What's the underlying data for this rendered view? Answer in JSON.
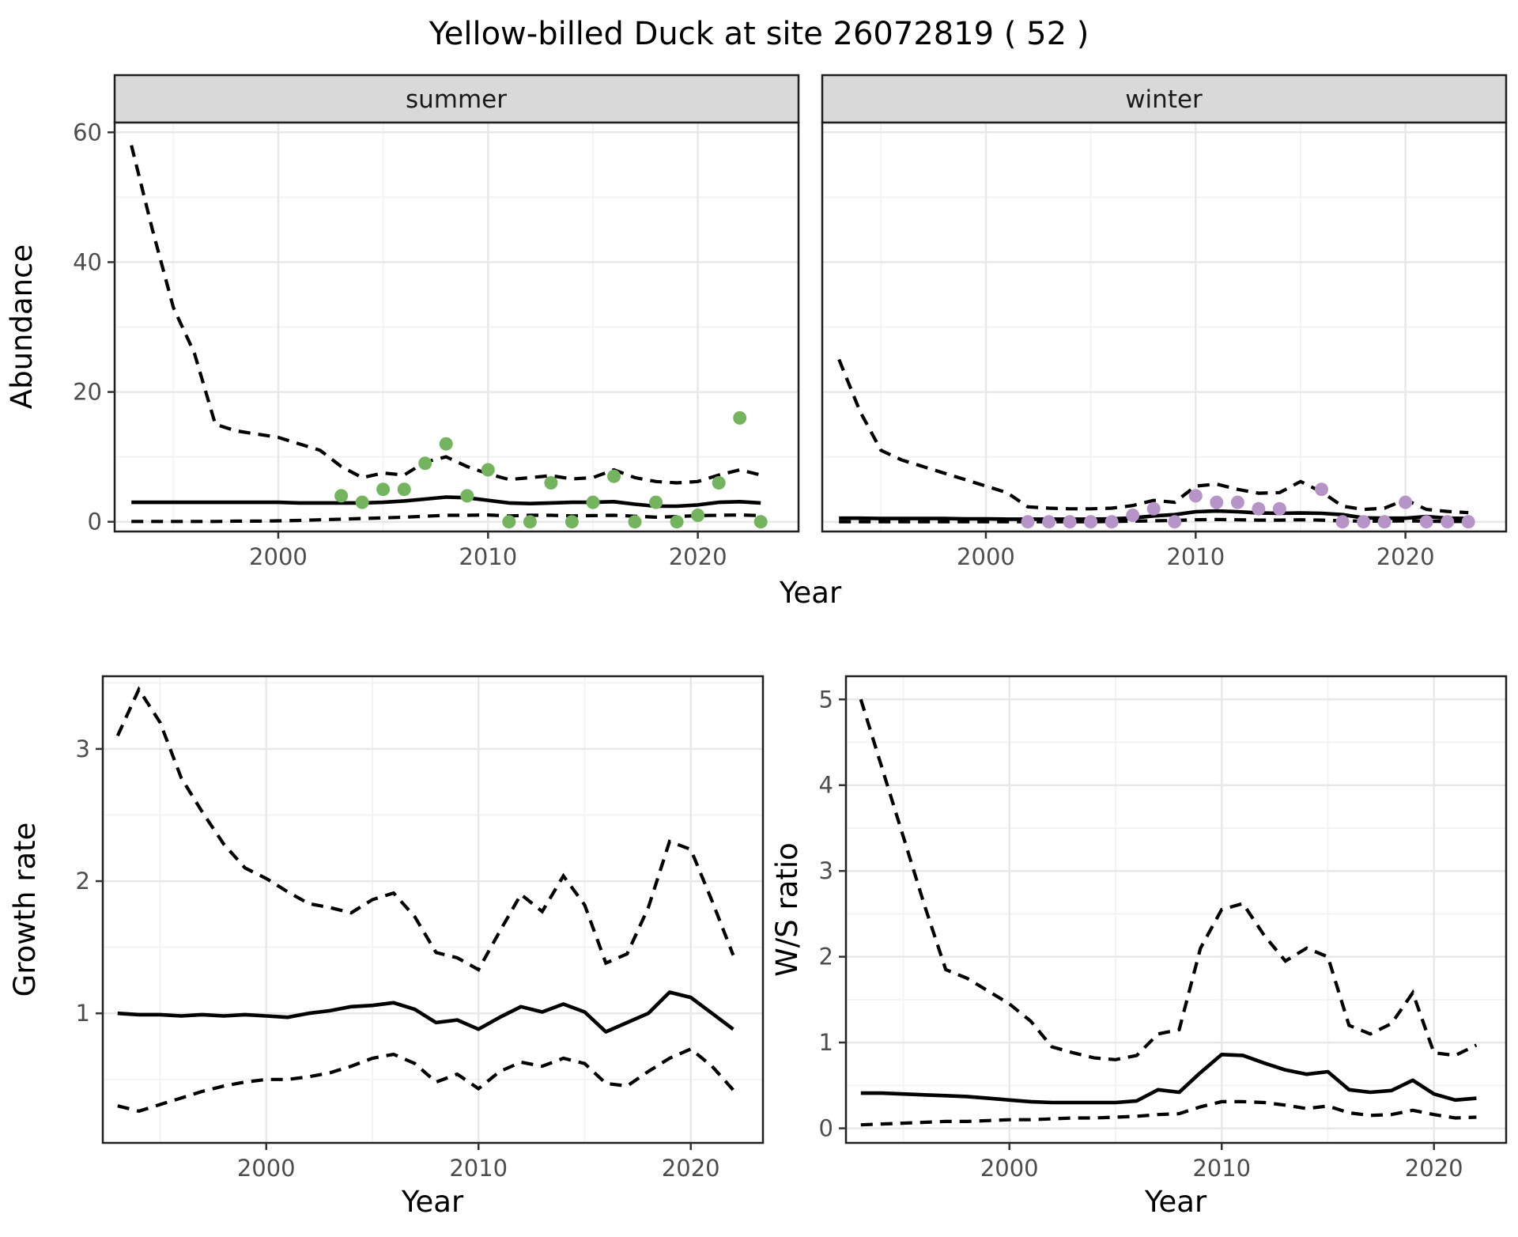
{
  "title": "Yellow-billed Duck at site 26072819 ( 52 )",
  "colors": {
    "summer_point": "#74b45e",
    "winter_point": "#b694c7",
    "line": "#000000",
    "strip_bg": "#d9d9d9",
    "strip_border": "#1f1f1f",
    "panel_border": "#1f1f1f",
    "grid_major": "#e8e8e8",
    "grid_minor": "#f3f3f3",
    "tick_text": "#4d4d4d",
    "tick_mark": "#333333",
    "title_text": "#000000",
    "strip_text": "#1a1a1a"
  },
  "chart_data": [
    {
      "id": "abundance",
      "type": "line",
      "ylabel": "Abundance",
      "xlabel": "Year",
      "xlim": [
        1992.2,
        2024.8
      ],
      "ylim": [
        -1.5,
        61.5
      ],
      "x_ticks": [
        2000,
        2010,
        2020
      ],
      "x_minor": [
        1995,
        2005,
        2015,
        2025
      ],
      "y_ticks": [
        0,
        20,
        40,
        60
      ],
      "y_minor": [
        10,
        30,
        50
      ],
      "grid": true,
      "legend": "none",
      "years": [
        1993,
        1994,
        1995,
        1996,
        1997,
        1998,
        1999,
        2000,
        2001,
        2002,
        2003,
        2004,
        2005,
        2006,
        2007,
        2008,
        2009,
        2010,
        2011,
        2012,
        2013,
        2014,
        2015,
        2016,
        2017,
        2018,
        2019,
        2020,
        2021,
        2022,
        2023
      ],
      "facets": [
        {
          "label": "summer",
          "median": [
            3.0,
            3.0,
            3.0,
            3.0,
            3.0,
            3.0,
            3.0,
            3.0,
            2.9,
            2.9,
            2.9,
            2.9,
            3.0,
            3.2,
            3.5,
            3.8,
            3.7,
            3.3,
            2.9,
            2.8,
            2.9,
            3.0,
            3.0,
            3.1,
            2.7,
            2.4,
            2.4,
            2.6,
            3.0,
            3.1,
            2.9
          ],
          "upper": [
            58,
            45,
            33,
            26,
            15,
            14,
            13.5,
            13,
            12,
            11,
            8.5,
            6.8,
            7.5,
            7.2,
            9.2,
            10,
            8.5,
            7.4,
            6.5,
            6.8,
            7.1,
            6.6,
            6.8,
            8.0,
            6.8,
            6.2,
            6.0,
            6.2,
            7.2,
            8.0,
            7.2
          ],
          "lower": [
            0.05,
            0.05,
            0.05,
            0.05,
            0.05,
            0.1,
            0.1,
            0.15,
            0.2,
            0.3,
            0.4,
            0.5,
            0.6,
            0.7,
            0.85,
            1.0,
            1.0,
            1.05,
            0.9,
            1.0,
            1.0,
            0.9,
            0.95,
            1.0,
            0.85,
            0.7,
            0.8,
            0.95,
            1.0,
            1.05,
            0.95
          ],
          "point_years": [
            2003,
            2004,
            2005,
            2006,
            2007,
            2008,
            2009,
            2010,
            2011,
            2012,
            2013,
            2014,
            2015,
            2016,
            2017,
            2018,
            2019,
            2020,
            2021,
            2022,
            2023
          ],
          "point_values": [
            4,
            3,
            5,
            5,
            9,
            12,
            4,
            8,
            0,
            0,
            6,
            0,
            3,
            7,
            0,
            3,
            0,
            1,
            6,
            16,
            0
          ]
        },
        {
          "label": "winter",
          "median": [
            0.55,
            0.55,
            0.5,
            0.5,
            0.5,
            0.5,
            0.45,
            0.45,
            0.4,
            0.4,
            0.4,
            0.4,
            0.4,
            0.45,
            0.6,
            0.9,
            1.1,
            1.55,
            1.65,
            1.55,
            1.35,
            1.3,
            1.35,
            1.3,
            1.1,
            0.6,
            0.55,
            0.55,
            0.8,
            0.55,
            0.5
          ],
          "upper": [
            25,
            17,
            11,
            9.5,
            8.5,
            7.5,
            6.5,
            5.5,
            4.5,
            2.3,
            2.1,
            2.0,
            2.0,
            2.1,
            2.5,
            3.3,
            3.0,
            5.5,
            5.8,
            5.0,
            4.4,
            4.5,
            6.2,
            4.6,
            2.4,
            1.9,
            2.1,
            3.4,
            1.9,
            1.6,
            1.4
          ],
          "lower": [
            0,
            0,
            0,
            0,
            0,
            0,
            0,
            0,
            0,
            0,
            0,
            0,
            0,
            0.05,
            0.1,
            0.15,
            0.2,
            0.3,
            0.35,
            0.3,
            0.25,
            0.25,
            0.3,
            0.25,
            0.15,
            0.1,
            0.1,
            0.15,
            0.1,
            0.05,
            0.05
          ],
          "point_years": [
            2002,
            2003,
            2004,
            2005,
            2006,
            2007,
            2008,
            2009,
            2010,
            2011,
            2012,
            2013,
            2014,
            2016,
            2017,
            2018,
            2019,
            2020,
            2021,
            2022,
            2023
          ],
          "point_values": [
            0,
            0,
            0,
            0,
            0,
            1,
            2,
            0,
            4,
            3,
            3,
            2,
            2,
            5,
            0,
            0,
            0,
            3,
            0,
            0,
            0
          ]
        }
      ]
    },
    {
      "id": "growth_rate",
      "type": "line",
      "ylabel": "Growth rate",
      "xlabel": "Year",
      "xlim": [
        1992.3,
        2023.4
      ],
      "ylim": [
        0.02,
        3.55
      ],
      "x_ticks": [
        2000,
        2010,
        2020
      ],
      "x_minor": [
        1995,
        2005,
        2015
      ],
      "y_ticks": [
        1,
        2,
        3
      ],
      "y_minor": [
        0.5,
        1.5,
        2.5,
        3.5
      ],
      "grid": true,
      "legend": "none",
      "years": [
        1993,
        1994,
        1995,
        1996,
        1997,
        1998,
        1999,
        2000,
        2001,
        2002,
        2003,
        2004,
        2005,
        2006,
        2007,
        2008,
        2009,
        2010,
        2011,
        2012,
        2013,
        2014,
        2015,
        2016,
        2017,
        2018,
        2019,
        2020,
        2021,
        2022
      ],
      "median": [
        1.0,
        0.99,
        0.99,
        0.98,
        0.99,
        0.98,
        0.99,
        0.98,
        0.97,
        1.0,
        1.02,
        1.05,
        1.06,
        1.08,
        1.03,
        0.93,
        0.95,
        0.88,
        0.97,
        1.05,
        1.01,
        1.07,
        1.01,
        0.86,
        0.93,
        1.0,
        1.16,
        1.12,
        1.0,
        0.88
      ],
      "upper": [
        3.1,
        3.45,
        3.2,
        2.78,
        2.52,
        2.28,
        2.1,
        2.02,
        1.92,
        1.83,
        1.8,
        1.76,
        1.86,
        1.91,
        1.73,
        1.46,
        1.42,
        1.33,
        1.62,
        1.9,
        1.77,
        2.04,
        1.82,
        1.38,
        1.45,
        1.8,
        2.3,
        2.24,
        1.85,
        1.44
      ],
      "lower": [
        0.3,
        0.26,
        0.31,
        0.36,
        0.41,
        0.45,
        0.48,
        0.5,
        0.5,
        0.52,
        0.55,
        0.6,
        0.66,
        0.69,
        0.62,
        0.48,
        0.54,
        0.43,
        0.56,
        0.63,
        0.6,
        0.66,
        0.62,
        0.47,
        0.45,
        0.56,
        0.66,
        0.73,
        0.6,
        0.42
      ]
    },
    {
      "id": "ws_ratio",
      "type": "line",
      "ylabel": "W/S ratio",
      "xlabel": "Year",
      "xlim": [
        1992.3,
        2023.4
      ],
      "ylim": [
        -0.17,
        5.27
      ],
      "x_ticks": [
        2000,
        2010,
        2020
      ],
      "x_minor": [
        1995,
        2005,
        2015
      ],
      "y_ticks": [
        0,
        1,
        2,
        3,
        4,
        5
      ],
      "y_minor": [
        0.5,
        1.5,
        2.5,
        3.5,
        4.5
      ],
      "grid": true,
      "legend": "none",
      "years": [
        1993,
        1994,
        1995,
        1996,
        1997,
        1998,
        1999,
        2000,
        2001,
        2002,
        2003,
        2004,
        2005,
        2006,
        2007,
        2008,
        2009,
        2010,
        2011,
        2012,
        2013,
        2014,
        2015,
        2016,
        2017,
        2018,
        2019,
        2020,
        2021,
        2022
      ],
      "median": [
        0.41,
        0.41,
        0.4,
        0.39,
        0.38,
        0.37,
        0.35,
        0.33,
        0.31,
        0.3,
        0.3,
        0.3,
        0.3,
        0.32,
        0.45,
        0.42,
        0.65,
        0.86,
        0.85,
        0.76,
        0.68,
        0.63,
        0.66,
        0.45,
        0.42,
        0.44,
        0.56,
        0.4,
        0.33,
        0.35
      ],
      "upper": [
        5.0,
        4.2,
        3.4,
        2.6,
        1.85,
        1.75,
        1.6,
        1.45,
        1.25,
        0.95,
        0.88,
        0.82,
        0.8,
        0.85,
        1.1,
        1.15,
        2.1,
        2.55,
        2.62,
        2.25,
        1.95,
        2.1,
        2.0,
        1.2,
        1.1,
        1.22,
        1.58,
        0.88,
        0.85,
        0.97
      ],
      "lower": [
        0.04,
        0.05,
        0.06,
        0.07,
        0.08,
        0.08,
        0.09,
        0.1,
        0.1,
        0.11,
        0.12,
        0.12,
        0.13,
        0.14,
        0.16,
        0.17,
        0.25,
        0.31,
        0.31,
        0.3,
        0.27,
        0.23,
        0.26,
        0.18,
        0.15,
        0.16,
        0.21,
        0.16,
        0.12,
        0.13
      ]
    }
  ]
}
